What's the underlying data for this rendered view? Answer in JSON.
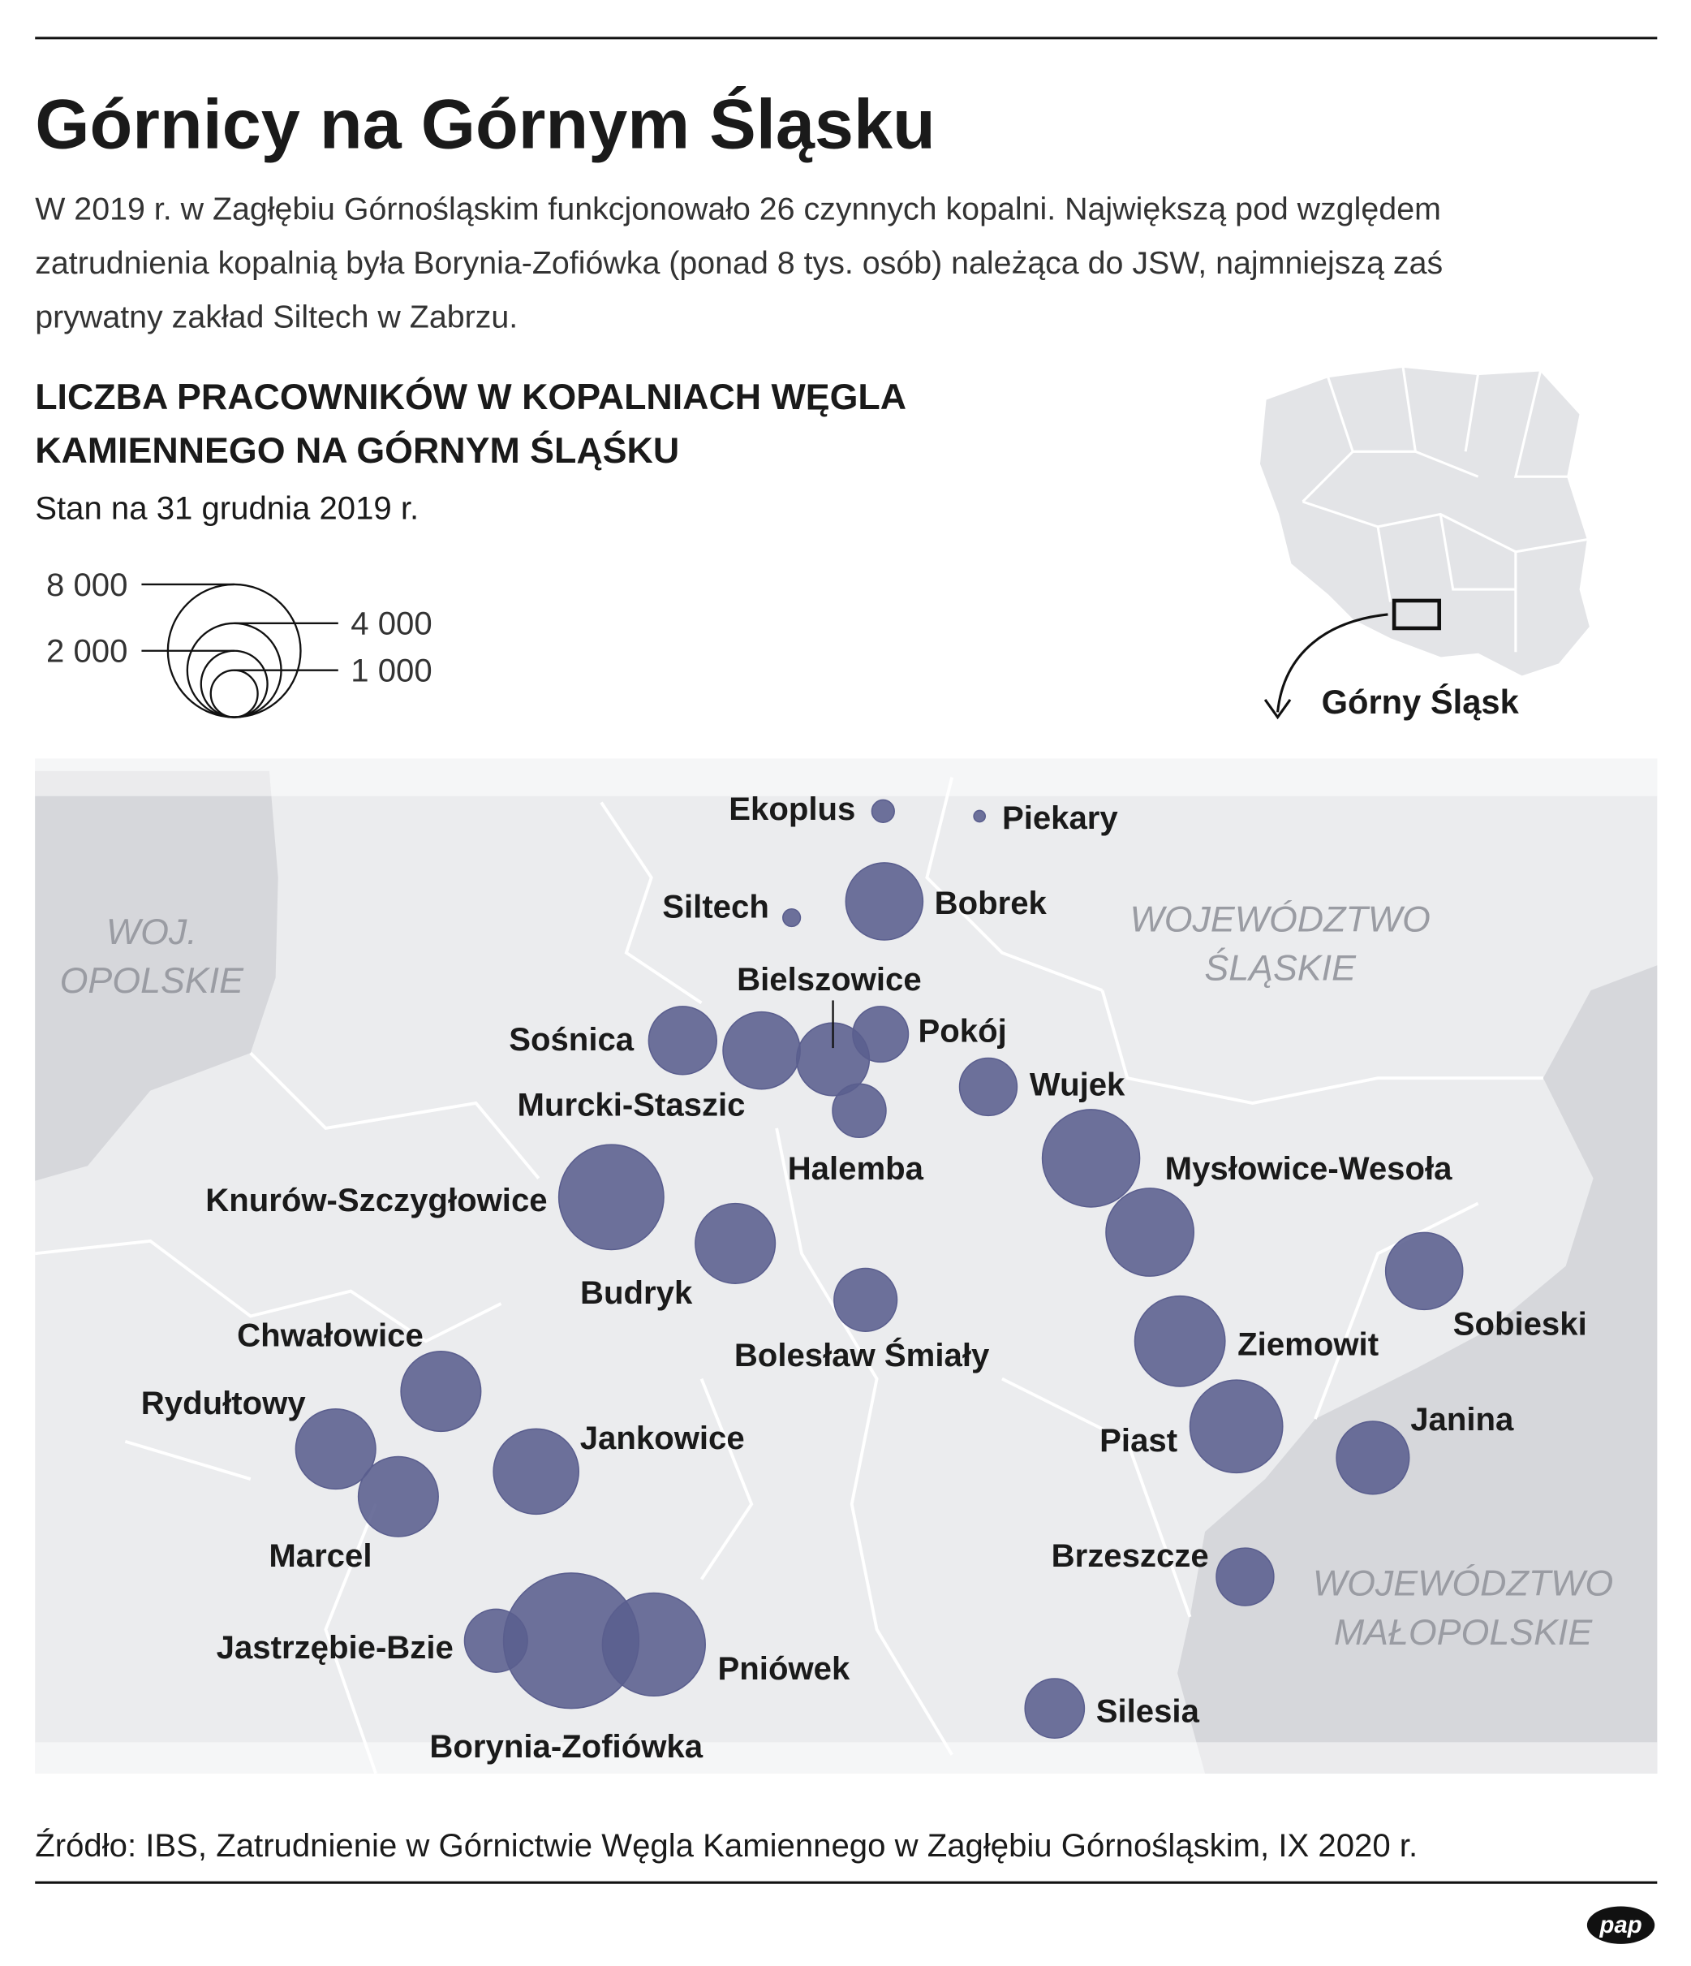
{
  "header": {
    "title": "Górnicy na Górnym Śląsku",
    "intro": [
      "W 2019 r. w Zagłębiu Górnośląskim funkcjonowało 26 czynnych kopalni. Największą pod względem",
      "zatrudnienia kopalnią była Borynia-Zofiówka (ponad 8 tys. osób) należąca do JSW, najmniejszą zaś",
      "prywatny zakład Siltech w Zabrzu."
    ]
  },
  "map": {
    "title": [
      "LICZBA PRACOWNIKÓW W KOPALNIACH WĘGLA",
      "KAMIENNEGO NA GÓRNYM ŚLĄŚKU"
    ],
    "subtitle": "Stan na 31 grudnia 2019 r.",
    "legend": {
      "ticks": [
        {
          "value": 8000,
          "label": "8 000"
        },
        {
          "value": 4000,
          "label": "4 000"
        },
        {
          "value": 2000,
          "label": "2 000"
        },
        {
          "value": 1000,
          "label": "1 000"
        }
      ]
    },
    "inset_label": "Górny Śląsk",
    "regions": [
      [
        "WOJ.",
        "OPOLSKIE"
      ],
      [
        "WOJEWÓDZTWO",
        "ŚLĄSKIE"
      ],
      [
        "WOJEWÓDZTWO",
        "MAŁOPOLSKIE"
      ]
    ],
    "bubble_color": "#5a5e8e",
    "mines": [
      {
        "name": "Ekoplus",
        "employees": 230
      },
      {
        "name": "Piekary",
        "employees": 60
      },
      {
        "name": "Siltech",
        "employees": 140
      },
      {
        "name": "Bobrek",
        "employees": 2700
      },
      {
        "name": "Bielszowice",
        "employees": 2400
      },
      {
        "name": "Sośnica",
        "employees": 2100
      },
      {
        "name": "Murcki-Staszic",
        "employees": 2700
      },
      {
        "name": "Pokój",
        "employees": 1400
      },
      {
        "name": "Halemba",
        "employees": 1300
      },
      {
        "name": "Wujek",
        "employees": 1500
      },
      {
        "name": "Mysłowice-Wesoła",
        "employees": 4300
      },
      {
        "name": "Knurów-Szczygłowice",
        "employees": 5000
      },
      {
        "name": "Budryk",
        "employees": 2900
      },
      {
        "name": "Bolesław Śmiały",
        "employees": 1800
      },
      {
        "name": null,
        "employees": 3500
      },
      {
        "name": "Sobieski",
        "employees": 2700
      },
      {
        "name": "Ziemowit",
        "employees": 3700
      },
      {
        "name": "Piast",
        "employees": 3900
      },
      {
        "name": "Janina",
        "employees": 2400
      },
      {
        "name": "Brzeszcze",
        "employees": 1500
      },
      {
        "name": "Chwałowice",
        "employees": 2900
      },
      {
        "name": "Rydułtowy",
        "employees": 2900
      },
      {
        "name": "Marcel",
        "employees": 2900
      },
      {
        "name": "Jankowice",
        "employees": 3300
      },
      {
        "name": "Jastrzębie-Bzie",
        "employees": 1800
      },
      {
        "name": "Borynia-Zofiówka",
        "employees": 8300
      },
      {
        "name": "Pniówek",
        "employees": 4800
      },
      {
        "name": "Silesia",
        "employees": 1600
      }
    ]
  },
  "footer": {
    "source": "Źródło: IBS, Zatrudnienie w Górnictwie Węgla Kamiennego w Zagłębiu Górnośląskim, IX 2020 r.",
    "logo": "pap"
  }
}
